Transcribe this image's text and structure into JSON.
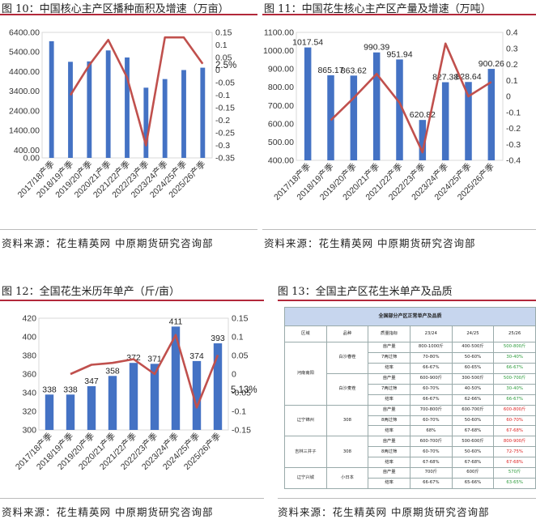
{
  "captions": {
    "c10": "图 10：中国核心主产区播种面积及增速（万亩）",
    "c11": "图 11：中国花生核心主产区产量及增速（万吨）",
    "c12": "图 12：全国花生米历年单产（斤/亩）",
    "c13": "图 13：全国主产区花生米单产及品质"
  },
  "source": "资料来源：花生精英网  中原期货研究咨询部",
  "colors": {
    "bar": "#4472c4",
    "line": "#c0504d",
    "rule": "#b2283a"
  },
  "chart_data": [
    {
      "type": "bar",
      "categories": [
        "2017/18产季",
        "2018/19产季",
        "2019/20产季",
        "2020/21产季",
        "2021/22产季",
        "2022/23产季",
        "2023/24产季",
        "2024/25产季",
        "2025/26产季"
      ],
      "series": [
        {
          "axis": "left",
          "type": "bar",
          "values": [
            5950,
            4900,
            4920,
            5480,
            5120,
            3580,
            4020,
            4480,
            4600
          ]
        },
        {
          "axis": "right",
          "type": "line",
          "values": [
            null,
            -0.1,
            0.02,
            0.12,
            -0.03,
            -0.3,
            0.13,
            0.13,
            0.025
          ]
        }
      ],
      "ylim": [
        0,
        6400
      ],
      "yticks": [
        "0.00",
        "400.00",
        "1400.00",
        "2400.00",
        "3400.00",
        "4400.00",
        "5400.00",
        "6400.00"
      ],
      "y2lim": [
        -0.35,
        0.15
      ],
      "y2ticks": [
        "0.15",
        "0.1",
        "0.05",
        "0",
        "-0.05",
        "-0.1",
        "-0.15",
        "-0.2",
        "-0.25",
        "-0.3",
        "-0.35"
      ],
      "annotations": [
        "2.5%"
      ]
    },
    {
      "type": "bar",
      "categories": [
        "2017/18产季",
        "2018/19产季",
        "2019/20产季",
        "2020/21产季",
        "2021/22产季",
        "2022/23产季",
        "2023/24产季",
        "2024/25产季",
        "2025/26产季"
      ],
      "series": [
        {
          "axis": "left",
          "type": "bar",
          "values": [
            1017.54,
            865.17,
            863.62,
            990.39,
            951.94,
            620.82,
            827.38,
            828.64,
            900.26
          ],
          "labels": [
            "1017.54",
            "865.17",
            "863.62",
            "990.39",
            "951.94",
            "620.82",
            "827.38",
            "828.64",
            "900.26"
          ]
        },
        {
          "axis": "right",
          "type": "line",
          "values": [
            null,
            -0.15,
            -0.01,
            0.14,
            -0.04,
            -0.35,
            0.33,
            0.0,
            0.09
          ]
        }
      ],
      "ylim": [
        400,
        1100
      ],
      "yticks": [
        "400.00",
        "500.00",
        "600.00",
        "700.00",
        "800.00",
        "900.00",
        "1000.00",
        "1100.00"
      ],
      "y2lim": [
        -0.4,
        0.4
      ],
      "y2ticks": [
        "0.4",
        "0.3",
        "0.2",
        "0.1",
        "0",
        "-0.1",
        "-0.2",
        "-0.3",
        "-0.4"
      ]
    },
    {
      "type": "bar",
      "categories": [
        "2017/18产季",
        "2018/19产季",
        "2019/20产季",
        "2020/21产季",
        "2021/22产季",
        "2022/23产季",
        "2023/24产季",
        "2024/25产季",
        "2025/26产季"
      ],
      "series": [
        {
          "axis": "left",
          "type": "bar",
          "values": [
            338,
            338,
            347,
            358,
            372,
            371,
            411,
            374,
            393
          ],
          "labels": [
            "338",
            "338",
            "347",
            "358",
            "372",
            "371",
            "411",
            "374",
            "393"
          ]
        },
        {
          "axis": "right",
          "type": "line",
          "values": [
            null,
            0.0,
            0.025,
            0.03,
            0.04,
            0.0,
            0.105,
            -0.09,
            0.051
          ]
        }
      ],
      "ylim": [
        300,
        420
      ],
      "yticks": [
        "300",
        "320",
        "340",
        "360",
        "380",
        "400",
        "420"
      ],
      "y2lim": [
        -0.15,
        0.15
      ],
      "y2ticks": [
        "0.15",
        "0.1",
        "0.05",
        "0",
        "-0.05",
        "-0.1",
        "-0.15"
      ],
      "annotations": [
        "5.13%"
      ]
    }
  ],
  "table": {
    "title": "全国部分产区正常单产及品质",
    "headers": [
      "区域",
      "品种",
      "质量指标",
      "23/24",
      "24/25",
      "25/26"
    ],
    "rows": [
      {
        "region": "河南南阳",
        "variety": "白沙春茬",
        "metric": "亩产量",
        "v1": "800-1000斤",
        "v2": "400-500斤",
        "v3": "500-800斤",
        "c3": "g"
      },
      {
        "region": "",
        "variety": "",
        "metric": "7两过筛",
        "v1": "70-80%",
        "v2": "50-60%",
        "v3": "30-40%",
        "c3": "g"
      },
      {
        "region": "",
        "variety": "",
        "metric": "结率",
        "v1": "66-67%",
        "v2": "60-65%",
        "v3": "66-67%",
        "c3": "g"
      },
      {
        "region": "",
        "variety": "白沙麦茬",
        "metric": "亩产量",
        "v1": "600-900斤",
        "v2": "300-500斤",
        "v3": "500-700斤",
        "c3": "g"
      },
      {
        "region": "",
        "variety": "",
        "metric": "7两过筛",
        "v1": "60-70%",
        "v2": "40-50%",
        "v3": "30-40%",
        "c3": "g"
      },
      {
        "region": "",
        "variety": "",
        "metric": "结率",
        "v1": "66-67%",
        "v2": "62-66%",
        "v3": "66-67%",
        "c3": "g"
      },
      {
        "region": "辽宁锦州",
        "variety": "308",
        "metric": "亩产量",
        "v1": "700-800斤",
        "v2": "600-700斤",
        "v3": "600-800斤",
        "c3": "r"
      },
      {
        "region": "",
        "variety": "",
        "metric": "8两过筛",
        "v1": "60-70%",
        "v2": "50-60%",
        "v3": "60-70%",
        "c3": "r"
      },
      {
        "region": "",
        "variety": "",
        "metric": "结率",
        "v1": "68%",
        "v2": "67-68%",
        "v3": "67-68%",
        "c3": "r"
      },
      {
        "region": "吉林三井子",
        "variety": "308",
        "metric": "亩产量",
        "v1": "600-700斤",
        "v2": "500-600斤",
        "v3": "800-900斤",
        "c3": "r"
      },
      {
        "region": "",
        "variety": "",
        "metric": "8两过筛",
        "v1": "60-70%",
        "v2": "50-60%",
        "v3": "72-75%",
        "c3": "r"
      },
      {
        "region": "",
        "variety": "",
        "metric": "结率",
        "v1": "67-68%",
        "v2": "67-68%",
        "v3": "67-68%",
        "c3": "r"
      },
      {
        "region": "辽宁兴城",
        "variety": "小日本",
        "metric": "亩产量",
        "v1": "700斤",
        "v2": "600斤",
        "v3": "570斤",
        "c3": "g"
      },
      {
        "region": "",
        "variety": "",
        "metric": "结率",
        "v1": "66-67%",
        "v2": "65-66%",
        "v3": "63-65%",
        "c3": "g"
      }
    ]
  }
}
